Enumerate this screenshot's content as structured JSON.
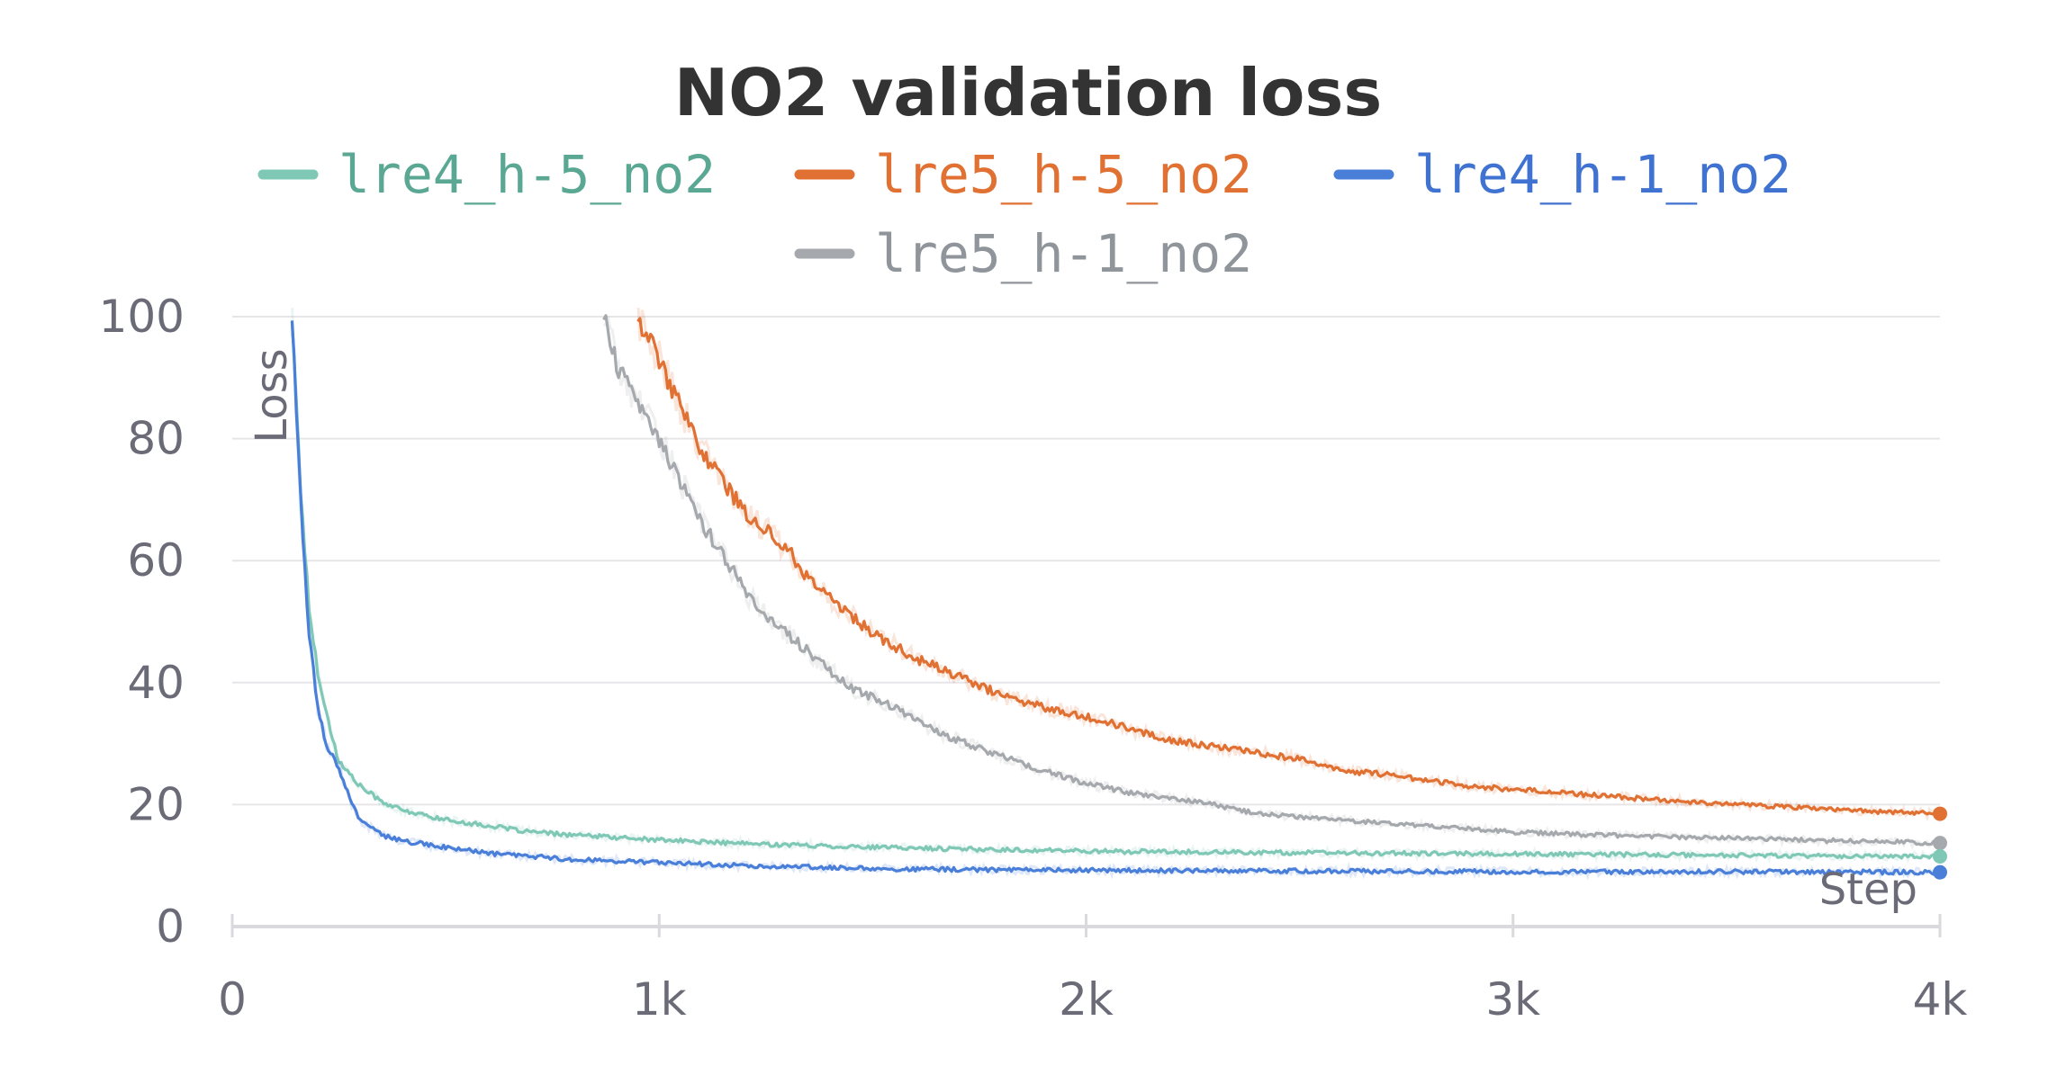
{
  "chart_data": {
    "type": "line",
    "title": "NO2 validation loss",
    "xlabel": "Step",
    "ylabel": "Loss",
    "xlim": [
      0,
      4000
    ],
    "ylim": [
      0,
      100
    ],
    "x_ticks": [
      0,
      1000,
      2000,
      3000,
      4000
    ],
    "x_tick_labels": [
      "0",
      "1k",
      "2k",
      "3k",
      "4k"
    ],
    "y_ticks": [
      0,
      20,
      40,
      60,
      80,
      100
    ],
    "y_tick_labels": [
      "0",
      "20",
      "40",
      "60",
      "80",
      "100"
    ],
    "grid": true,
    "legend_position": "top",
    "series": [
      {
        "name": "lre4_h-5_no2",
        "color": "#7fc8b6",
        "text_color": "#5aa893",
        "points": [
          [
            140,
            100
          ],
          [
            160,
            72
          ],
          [
            180,
            52
          ],
          [
            200,
            42
          ],
          [
            220,
            35
          ],
          [
            250,
            27
          ],
          [
            300,
            23
          ],
          [
            350,
            20.5
          ],
          [
            400,
            19
          ],
          [
            500,
            17.5
          ],
          [
            600,
            16.5
          ],
          [
            700,
            15.5
          ],
          [
            800,
            15
          ],
          [
            1000,
            14.2
          ],
          [
            1200,
            13.6
          ],
          [
            1500,
            13
          ],
          [
            1800,
            12.6
          ],
          [
            2100,
            12.3
          ],
          [
            2500,
            12.1
          ],
          [
            3000,
            11.9
          ],
          [
            3500,
            11.7
          ],
          [
            4000,
            11.5
          ]
        ]
      },
      {
        "name": "lre5_h-5_no2",
        "color": "#e07133",
        "text_color": "#e07133",
        "points": [
          [
            950,
            100
          ],
          [
            1000,
            93
          ],
          [
            1050,
            85
          ],
          [
            1100,
            78
          ],
          [
            1150,
            73
          ],
          [
            1200,
            68
          ],
          [
            1250,
            65
          ],
          [
            1300,
            62
          ],
          [
            1350,
            57
          ],
          [
            1400,
            54
          ],
          [
            1450,
            51
          ],
          [
            1500,
            48
          ],
          [
            1550,
            46
          ],
          [
            1600,
            44
          ],
          [
            1700,
            41
          ],
          [
            1800,
            38
          ],
          [
            1900,
            36
          ],
          [
            2000,
            34.5
          ],
          [
            2100,
            32.5
          ],
          [
            2200,
            30.5
          ],
          [
            2300,
            29.5
          ],
          [
            2400,
            28.5
          ],
          [
            2500,
            27.5
          ],
          [
            2600,
            25.5
          ],
          [
            2700,
            25
          ],
          [
            2800,
            24
          ],
          [
            2900,
            23
          ],
          [
            3000,
            22.5
          ],
          [
            3200,
            21.5
          ],
          [
            3400,
            20.5
          ],
          [
            3600,
            19.8
          ],
          [
            3800,
            19
          ],
          [
            4000,
            18.5
          ]
        ]
      },
      {
        "name": "lre4_h-1_no2",
        "color": "#4a7fd9",
        "text_color": "#3f72d1",
        "points": [
          [
            140,
            100
          ],
          [
            160,
            70
          ],
          [
            180,
            48
          ],
          [
            200,
            36
          ],
          [
            220,
            30
          ],
          [
            250,
            26
          ],
          [
            280,
            20
          ],
          [
            300,
            17.5
          ],
          [
            350,
            15
          ],
          [
            400,
            14
          ],
          [
            500,
            13
          ],
          [
            600,
            12
          ],
          [
            700,
            11.5
          ],
          [
            800,
            11
          ],
          [
            1000,
            10.5
          ],
          [
            1200,
            10
          ],
          [
            1500,
            9.5
          ],
          [
            1800,
            9.3
          ],
          [
            2100,
            9.2
          ],
          [
            2500,
            9.1
          ],
          [
            3000,
            9
          ],
          [
            3500,
            9
          ],
          [
            4000,
            8.9
          ]
        ]
      },
      {
        "name": "lre5_h-1_no2",
        "color": "#a5a9ad",
        "text_color": "#8f959a",
        "points": [
          [
            870,
            100
          ],
          [
            900,
            92
          ],
          [
            950,
            86
          ],
          [
            1000,
            80
          ],
          [
            1050,
            73
          ],
          [
            1100,
            66
          ],
          [
            1150,
            61
          ],
          [
            1200,
            55
          ],
          [
            1250,
            51
          ],
          [
            1300,
            48
          ],
          [
            1350,
            45
          ],
          [
            1400,
            42
          ],
          [
            1450,
            39
          ],
          [
            1500,
            37.5
          ],
          [
            1550,
            36
          ],
          [
            1600,
            34
          ],
          [
            1650,
            32
          ],
          [
            1700,
            30.5
          ],
          [
            1800,
            28
          ],
          [
            1900,
            25.5
          ],
          [
            2000,
            23.5
          ],
          [
            2100,
            22
          ],
          [
            2200,
            21
          ],
          [
            2300,
            20
          ],
          [
            2400,
            18.5
          ],
          [
            2600,
            17.5
          ],
          [
            2800,
            16.5
          ],
          [
            3000,
            15.5
          ],
          [
            3200,
            15
          ],
          [
            3400,
            14.7
          ],
          [
            3600,
            14.3
          ],
          [
            3800,
            14
          ],
          [
            4000,
            13.7
          ]
        ]
      }
    ]
  }
}
